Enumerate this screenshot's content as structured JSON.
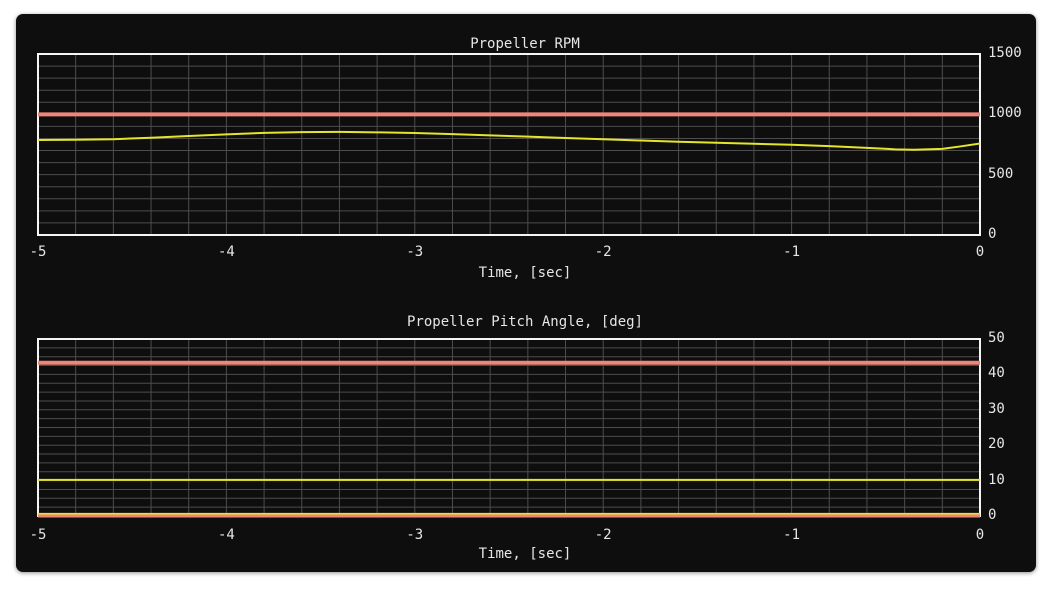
{
  "window": {
    "background": "#ffffff",
    "panel_background": "#0e0e0e"
  },
  "colors": {
    "grid": "#4d4d4d",
    "axis_border": "#f5f5f5",
    "text": "#e6e6e6",
    "red_line": "#f0857a",
    "yellow_line": "#e5e52a"
  },
  "chart_data": [
    {
      "type": "line",
      "title": "Propeller RPM",
      "xlabel": "Time, [sec]",
      "xlim": [
        -5,
        0
      ],
      "ylim": [
        0,
        1500
      ],
      "xtick_labels": [
        "-5",
        "-4",
        "-3",
        "-2",
        "-1",
        "0"
      ],
      "xtick_values": [
        -5,
        -4,
        -3,
        -2,
        -1,
        0
      ],
      "ytick_labels": [
        "1500",
        "1000",
        "500",
        "0"
      ],
      "ytick_values": [
        1500,
        1000,
        500,
        0
      ],
      "ytick_side": "right",
      "x_minor_step": 0.2,
      "y_minor_step": 100,
      "grid": true,
      "legend": "none",
      "series": [
        {
          "name": "rpm-reference-line",
          "color": "#f0857a",
          "width": 4,
          "x": [
            -5,
            0
          ],
          "y": [
            1000,
            1000
          ]
        },
        {
          "name": "rpm-trace",
          "color": "#e5e52a",
          "width": 2,
          "x": [
            -5,
            -4.8,
            -4.6,
            -4.4,
            -4.2,
            -4.0,
            -3.8,
            -3.6,
            -3.4,
            -3.2,
            -3.0,
            -2.8,
            -2.6,
            -2.4,
            -2.2,
            -2.0,
            -1.8,
            -1.6,
            -1.4,
            -1.2,
            -1.0,
            -0.8,
            -0.6,
            -0.45,
            -0.35,
            -0.2,
            -0.1,
            0
          ],
          "y": [
            787,
            789,
            794,
            806,
            820,
            834,
            846,
            853,
            855,
            851,
            845,
            836,
            826,
            815,
            804,
            793,
            783,
            773,
            764,
            756,
            748,
            737,
            722,
            710,
            706,
            714,
            735,
            758
          ]
        }
      ]
    },
    {
      "type": "line",
      "title": "Propeller Pitch Angle, [deg]",
      "xlabel": "Time, [sec]",
      "xlim": [
        -5,
        0
      ],
      "ylim": [
        0,
        50
      ],
      "xtick_labels": [
        "-5",
        "-4",
        "-3",
        "-2",
        "-1",
        "0"
      ],
      "xtick_values": [
        -5,
        -4,
        -3,
        -2,
        -1,
        0
      ],
      "ytick_labels": [
        "50",
        "40",
        "30",
        "20",
        "10",
        "0"
      ],
      "ytick_values": [
        50,
        40,
        30,
        20,
        10,
        0
      ],
      "ytick_side": "right",
      "x_minor_step": 0.2,
      "y_minor_step": 2.5,
      "grid": true,
      "legend": "none",
      "series": [
        {
          "name": "pitch-upper-reference-line",
          "color": "#f0857a",
          "width": 4,
          "x": [
            -5,
            0
          ],
          "y": [
            43.3,
            43.3
          ]
        },
        {
          "name": "pitch-trace",
          "color": "#e5e52a",
          "width": 2,
          "x": [
            -5,
            0
          ],
          "y": [
            10.2,
            10.2
          ]
        },
        {
          "name": "pitch-zero-trace",
          "color": "#e5e52a",
          "width": 2,
          "x": [
            -5,
            0
          ],
          "y": [
            0.6,
            0.6
          ]
        },
        {
          "name": "pitch-lower-reference-line",
          "color": "#f0857a",
          "width": 3,
          "x": [
            -5,
            0
          ],
          "y": [
            0,
            0
          ]
        }
      ]
    }
  ]
}
